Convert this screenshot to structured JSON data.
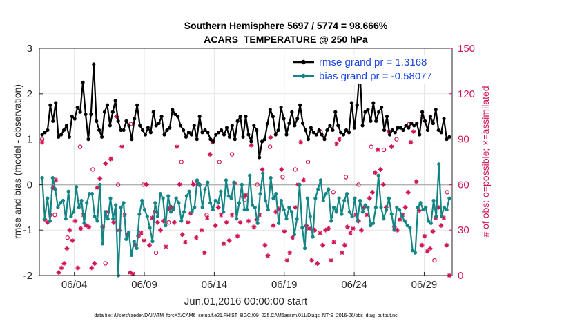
{
  "chart_data": {
    "type": "line",
    "title_line1": "Southern Hemisphere 5697 / 5774 = 98.666%",
    "title_line2": "ACARS_TEMPERATURE @ 250 hPa",
    "xlabel": "Jun.01,2016 00:00:00 start",
    "ylabel_left": "rmse and bias (model - observation)",
    "ylabel_right": "# of obs: o=possible; ×=assimilated",
    "footnote": "data file: /Users/raeder/DAI/ATM_forcXX/CAM6_setup/f.e21.FHIST_BGC.f09_025.CAM6assim.011/Diags_NTrS_2016-06/obs_diag_output.nc",
    "xlim": [
      1.5,
      31.0
    ],
    "ylim_left": [
      -2,
      3
    ],
    "ylim_right": [
      0,
      150
    ],
    "yticks_left": [
      "-2",
      "-1",
      "0",
      "1",
      "2",
      "3"
    ],
    "yticks_right": [
      "0",
      "30",
      "60",
      "90",
      "120",
      "150"
    ],
    "xticks": [
      {
        "x": 4,
        "label": "06/04"
      },
      {
        "x": 9,
        "label": "06/09"
      },
      {
        "x": 14,
        "label": "06/14"
      },
      {
        "x": 19,
        "label": "06/19"
      },
      {
        "x": 24,
        "label": "06/24"
      },
      {
        "x": 29,
        "label": "06/29"
      }
    ],
    "legend": {
      "rmse_label": "rmse grand pr = 1.3168",
      "bias_label": "bias grand pr = -0.58077"
    },
    "colors": {
      "rmse": "#000000",
      "bias": "#148585",
      "obs": "#d11556",
      "zero": "#b3b3b3",
      "legend_text": "#1a46e6"
    },
    "rmse": [
      1.1,
      1.15,
      1.2,
      1.75,
      1.4,
      1.8,
      1.05,
      1.1,
      1.2,
      1.3,
      1.05,
      1.5,
      1.45,
      1.7,
      1.6,
      2.25,
      1.55,
      1.0,
      1.55,
      2.65,
      1.4,
      1.2,
      1.05,
      1.6,
      1.75,
      1.3,
      1.6,
      1.85,
      1.4,
      1.2,
      1.2,
      1.4,
      1.3,
      1.0,
      1.45,
      1.75,
      1.3,
      1.2,
      1.1,
      1.25,
      1.15,
      1.6,
      1.3,
      1.35,
      1.5,
      1.1,
      1.2,
      1.25,
      1.65,
      1.55,
      1.5,
      1.3,
      1.2,
      1.05,
      1.15,
      1.1,
      1.3,
      1.0,
      1.5,
      1.15,
      1.2,
      1.15,
      1.0,
      0.95,
      1.1,
      1.15,
      1.2,
      1.1,
      1.25,
      1.05,
      1.3,
      1.0,
      1.4,
      1.5,
      1.05,
      1.5,
      1.1,
      0.95,
      1.3,
      1.2,
      0.6,
      0.95,
      1.0,
      1.35,
      1.65,
      1.5,
      1.1,
      1.2,
      1.7,
      1.45,
      1.1,
      1.35,
      1.6,
      1.3,
      1.45,
      1.75,
      1.35,
      1.2,
      1.0,
      1.25,
      1.15,
      1.1,
      1.2,
      1.1,
      1.0,
      1.2,
      1.3,
      1.2,
      1.6,
      1.3,
      1.15,
      1.1,
      1.2,
      1.15,
      1.8,
      1.25,
      1.75,
      2.55,
      1.3,
      1.6,
      1.65,
      1.4,
      1.8,
      1.4,
      1.6,
      1.7,
      1.2,
      1.5,
      1.1,
      1.2,
      1.15,
      1.25,
      1.25,
      1.2,
      1.3,
      1.25,
      1.35,
      1.3,
      1.35,
      1.1,
      1.6,
      1.4,
      1.2,
      1.5,
      1.35,
      1.65,
      1.2,
      1.15,
      1.45,
      1.0,
      1.05
    ],
    "bias": [
      0.15,
      -0.75,
      -0.3,
      -0.8,
      0.15,
      -0.1,
      -0.5,
      -0.4,
      -0.35,
      -0.75,
      -0.15,
      -0.7,
      -0.6,
      -0.05,
      -0.5,
      -0.35,
      -0.85,
      -0.4,
      -0.2,
      -0.2,
      -0.7,
      -0.8,
      0.0,
      -1.3,
      -0.6,
      -0.75,
      -0.3,
      -0.75,
      -0.45,
      -2.0,
      -0.5,
      -0.4,
      -1.2,
      -1.05,
      -1.55,
      -1.25,
      -1.4,
      -0.65,
      -0.35,
      -0.55,
      -0.7,
      -0.95,
      -1.25,
      -0.4,
      -0.7,
      -0.2,
      -0.3,
      -0.9,
      -0.25,
      -0.6,
      -0.55,
      -0.3,
      -0.4,
      -0.8,
      -0.6,
      -0.25,
      -0.15,
      -0.6,
      -0.5,
      0.1,
      0.0,
      -0.5,
      -0.1,
      0.05,
      -0.4,
      -0.55,
      -0.35,
      -0.4,
      -0.15,
      -0.6,
      0.1,
      -0.25,
      -0.3,
      0.05,
      -0.75,
      -0.4,
      0.0,
      -0.55,
      -0.55,
      0.2,
      -0.45,
      -0.5,
      -0.85,
      -0.2,
      0.25,
      -0.35,
      -0.55,
      0.15,
      -0.3,
      -0.2,
      -0.85,
      -0.35,
      -0.55,
      -0.75,
      -0.5,
      -0.6,
      -1.1,
      -0.75,
      0.0,
      -0.95,
      -1.4,
      -0.3,
      -0.7,
      -1.15,
      -0.3,
      -0.1,
      0.1,
      -0.35,
      -0.2,
      -0.1,
      -0.8,
      -0.5,
      -0.6,
      -0.3,
      -0.65,
      -0.35,
      -0.2,
      -0.6,
      -0.7,
      -0.3,
      -0.8,
      -0.35,
      -0.6,
      -0.45,
      -0.5,
      -0.9,
      -0.85,
      -0.5,
      0.2,
      -0.5,
      -0.75,
      -0.55,
      -0.3,
      -0.65,
      -1.0,
      -0.5,
      -0.55,
      -0.7,
      -0.8,
      -0.9,
      -0.95,
      -1.45,
      -1.5,
      -0.5,
      -0.4,
      -0.55,
      -0.5,
      -0.8,
      -0.85,
      -0.35,
      -0.7,
      0.45,
      -0.7,
      -0.5,
      -0.55,
      -0.3
    ],
    "assimilated": [
      88,
      37,
      35,
      40,
      58,
      63,
      2,
      5,
      8,
      18,
      30,
      23,
      36,
      5,
      31,
      40,
      33,
      32,
      5,
      8,
      58,
      64,
      32,
      74,
      42,
      77,
      35,
      105,
      30,
      85,
      40,
      27,
      2,
      1,
      20,
      26,
      28,
      23,
      60,
      20,
      38,
      42,
      35,
      30,
      36,
      19,
      44,
      45,
      35,
      85,
      60,
      27,
      22,
      35,
      41,
      60,
      25,
      60,
      30,
      15,
      38,
      80,
      88,
      33,
      45,
      40,
      21,
      35,
      23,
      40,
      61,
      26,
      35,
      52,
      53,
      36,
      86,
      32,
      37,
      40,
      70,
      20,
      13,
      91,
      33,
      42,
      44,
      70,
      29,
      10,
      15,
      25,
      45,
      60,
      88,
      63,
      33,
      31,
      10,
      30,
      8,
      28,
      20,
      30,
      31,
      10,
      22,
      87,
      90,
      15,
      20,
      32,
      28,
      31,
      40,
      36,
      30,
      45,
      40,
      51,
      55,
      68,
      83,
      70,
      60,
      45,
      95,
      85,
      32,
      30,
      37,
      40,
      45,
      55,
      88,
      95,
      62,
      43,
      20,
      26,
      16,
      18,
      29,
      38,
      45,
      33,
      38,
      20,
      0
    ],
    "possible": [
      90,
      40,
      25,
      85,
      70,
      8,
      60,
      100,
      60,
      15,
      35,
      75,
      62,
      40,
      75,
      80,
      50,
      60,
      85,
      65,
      70,
      75,
      95,
      55,
      65,
      60,
      85,
      83,
      90,
      100,
      105,
      10,
      55
    ]
  }
}
